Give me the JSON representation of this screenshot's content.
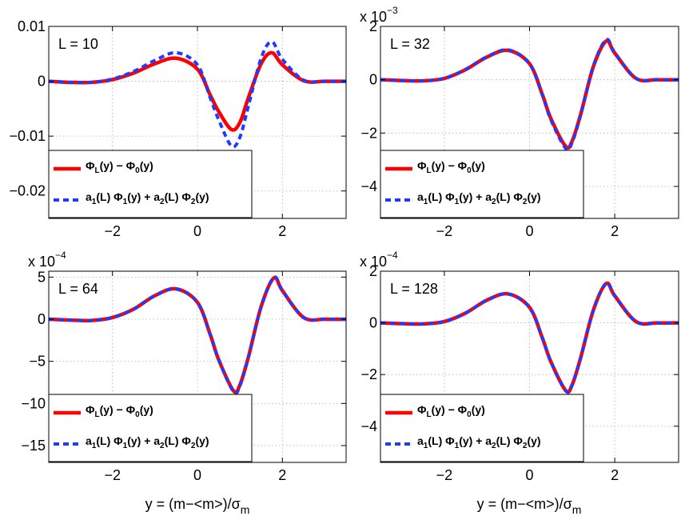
{
  "xlabel": "y = (m−<m>)/σ",
  "xlabel_sub": "m",
  "legend": {
    "series1": {
      "main": "Φ",
      "sub1": "L",
      "mid": "(y) − Φ",
      "sub2": "0",
      "end": "(y)"
    },
    "series2": {
      "a1": "a",
      "s1": "1",
      "t1": "(L) Φ",
      "s2": "1",
      "t2": "(y) + a",
      "s3": "2",
      "t3": "(L) Φ",
      "s4": "2",
      "t4": "(y)"
    }
  },
  "colors": {
    "series1": "#ff0000",
    "series2": "#1f3bff"
  },
  "chart_data": [
    {
      "type": "line",
      "annotation": "L = 10",
      "xlim": [
        -3.5,
        3.5
      ],
      "ylim": [
        -0.025,
        0.01
      ],
      "xticks": [
        -2,
        0,
        2
      ],
      "xtick_labels": [
        "−2",
        "0",
        "2"
      ],
      "yticks": [
        0.01,
        0,
        -0.01,
        -0.02
      ],
      "ytick_labels": [
        "0.01",
        "0",
        "−0.01",
        "−0.02"
      ],
      "exponent_label": "",
      "exponent_power": "",
      "grid": true,
      "legend_position": "lower-left",
      "series": [
        {
          "x": [
            -3.5,
            -3,
            -2.5,
            -2,
            -1.5,
            -1,
            -0.5,
            0,
            0.3,
            0.5,
            0.8,
            1,
            1.2,
            1.5,
            1.75,
            2,
            2.5,
            3,
            3.5
          ],
          "y": [
            0,
            -0.0002,
            -0.0002,
            0.0003,
            0.0015,
            0.0032,
            0.0042,
            0.0022,
            -0.0025,
            -0.0055,
            -0.0088,
            -0.0075,
            -0.003,
            0.0032,
            0.0052,
            0.003,
            0.0001,
            0,
            0
          ]
        },
        {
          "x": [
            -3.5,
            -3,
            -2.5,
            -2,
            -1.5,
            -1,
            -0.5,
            0,
            0.3,
            0.5,
            0.8,
            1,
            1.2,
            1.5,
            1.75,
            2,
            2.5,
            3,
            3.5
          ],
          "y": [
            0,
            -0.0002,
            -0.0002,
            0.0004,
            0.0018,
            0.0038,
            0.0052,
            0.003,
            -0.003,
            -0.007,
            -0.0118,
            -0.0102,
            -0.0045,
            0.0042,
            0.0072,
            0.004,
            0.0002,
            0,
            0
          ]
        }
      ]
    },
    {
      "type": "line",
      "annotation": "L = 32",
      "xlim": [
        -3.5,
        3.5
      ],
      "ylim": [
        -5.2,
        2
      ],
      "xticks": [
        -2,
        0,
        2
      ],
      "xtick_labels": [
        "−2",
        "0",
        "2"
      ],
      "yticks": [
        2,
        0,
        -2,
        -4
      ],
      "ytick_labels": [
        "2",
        "0",
        "−2",
        "−4"
      ],
      "exponent_label": "x 10",
      "exponent_power": "−3",
      "grid": true,
      "legend_position": "lower-left",
      "series": [
        {
          "x": [
            -3.5,
            -3,
            -2.5,
            -2,
            -1.5,
            -1,
            -0.5,
            0,
            0.3,
            0.5,
            0.85,
            1,
            1.2,
            1.5,
            1.8,
            2,
            2.5,
            3,
            3.5
          ],
          "y": [
            0,
            -0.03,
            -0.04,
            0.05,
            0.38,
            0.85,
            1.1,
            0.6,
            -0.55,
            -1.45,
            -2.5,
            -2.3,
            -1.3,
            0.5,
            1.45,
            1.0,
            0.05,
            0,
            0
          ]
        },
        {
          "x": [
            -3.5,
            -3,
            -2.5,
            -2,
            -1.5,
            -1,
            -0.5,
            0,
            0.3,
            0.5,
            0.85,
            1,
            1.2,
            1.5,
            1.8,
            2,
            2.5,
            3,
            3.5
          ],
          "y": [
            0,
            -0.03,
            -0.04,
            0.05,
            0.39,
            0.86,
            1.12,
            0.6,
            -0.57,
            -1.5,
            -2.58,
            -2.35,
            -1.32,
            0.52,
            1.5,
            1.02,
            0.05,
            0,
            0
          ]
        }
      ]
    },
    {
      "type": "line",
      "annotation": "L = 64",
      "xlim": [
        -3.5,
        3.5
      ],
      "ylim": [
        -17,
        5.7
      ],
      "xticks": [
        -2,
        0,
        2
      ],
      "xtick_labels": [
        "−2",
        "0",
        "2"
      ],
      "yticks": [
        5,
        0,
        -5,
        -10,
        -15
      ],
      "ytick_labels": [
        "5",
        "0",
        "−5",
        "−10",
        "−15"
      ],
      "exponent_label": "x 10",
      "exponent_power": "−4",
      "grid": true,
      "legend_position": "lower-left",
      "series": [
        {
          "x": [
            -3.5,
            -3,
            -2.5,
            -2,
            -1.5,
            -1,
            -0.5,
            0,
            0.3,
            0.5,
            0.85,
            1,
            1.2,
            1.5,
            1.8,
            2,
            2.5,
            3,
            3.5
          ],
          "y": [
            0,
            -0.1,
            -0.15,
            0.2,
            1.2,
            2.8,
            3.6,
            2.0,
            -1.8,
            -4.8,
            -8.5,
            -7.8,
            -4.5,
            1.5,
            4.9,
            3.4,
            0.2,
            0,
            0
          ]
        },
        {
          "x": [
            -3.5,
            -3,
            -2.5,
            -2,
            -1.5,
            -1,
            -0.5,
            0,
            0.3,
            0.5,
            0.85,
            1,
            1.2,
            1.5,
            1.8,
            2,
            2.5,
            3,
            3.5
          ],
          "y": [
            0,
            -0.1,
            -0.15,
            0.2,
            1.2,
            2.8,
            3.6,
            2.0,
            -1.8,
            -4.8,
            -8.6,
            -7.9,
            -4.5,
            1.5,
            4.95,
            3.4,
            0.2,
            0,
            0
          ]
        }
      ]
    },
    {
      "type": "line",
      "annotation": "L = 128",
      "xlim": [
        -3.5,
        3.5
      ],
      "ylim": [
        -5.4,
        2
      ],
      "xticks": [
        -2,
        0,
        2
      ],
      "xtick_labels": [
        "−2",
        "0",
        "2"
      ],
      "yticks": [
        2,
        0,
        -2,
        -4
      ],
      "ytick_labels": [
        "2",
        "0",
        "−2",
        "−4"
      ],
      "exponent_label": "x 10",
      "exponent_power": "−4",
      "grid": true,
      "legend_position": "lower-left",
      "series": [
        {
          "x": [
            -3.5,
            -3,
            -2.5,
            -2,
            -1.5,
            -1,
            -0.5,
            0,
            0.3,
            0.5,
            0.85,
            1,
            1.2,
            1.5,
            1.8,
            2,
            2.5,
            3,
            3.5
          ],
          "y": [
            0,
            -0.03,
            -0.04,
            0.05,
            0.38,
            0.88,
            1.12,
            0.6,
            -0.58,
            -1.5,
            -2.62,
            -2.4,
            -1.35,
            0.5,
            1.52,
            1.05,
            0.05,
            0,
            0
          ]
        },
        {
          "x": [
            -3.5,
            -3,
            -2.5,
            -2,
            -1.5,
            -1,
            -0.5,
            0,
            0.3,
            0.5,
            0.85,
            1,
            1.2,
            1.5,
            1.8,
            2,
            2.5,
            3,
            3.5
          ],
          "y": [
            0,
            -0.03,
            -0.04,
            0.05,
            0.38,
            0.88,
            1.12,
            0.6,
            -0.58,
            -1.5,
            -2.63,
            -2.4,
            -1.35,
            0.5,
            1.53,
            1.05,
            0.05,
            0,
            0
          ]
        }
      ]
    }
  ]
}
